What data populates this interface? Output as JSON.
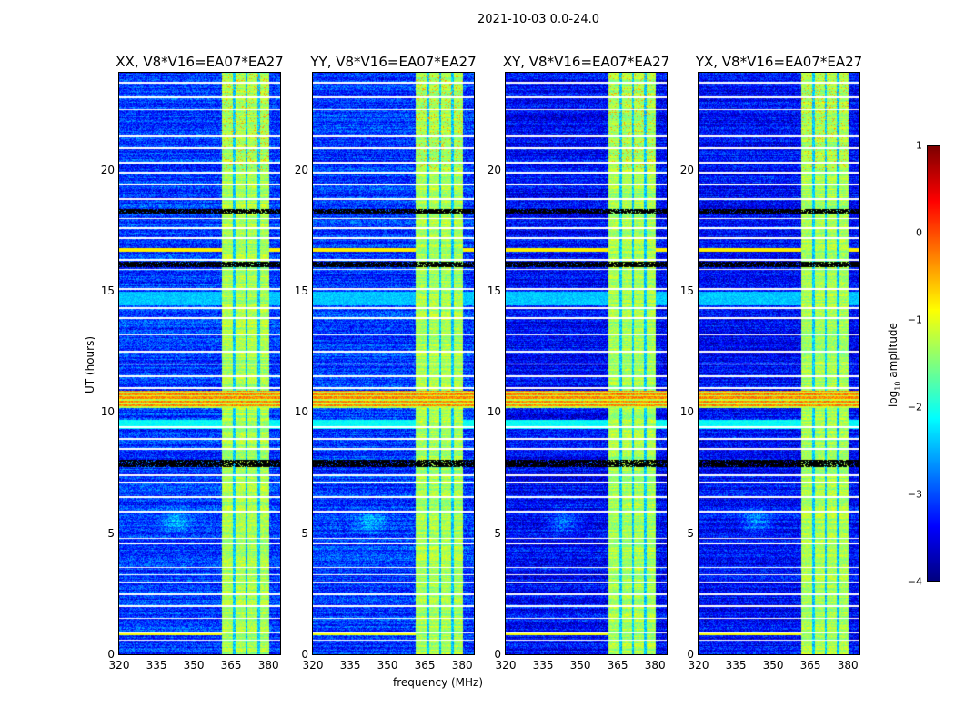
{
  "suptitle": "2021-10-03 0.0-24.0",
  "chart_data": {
    "type": "heatmap",
    "panels": [
      {
        "title": "XX, V8*V16=EA07*EA27"
      },
      {
        "title": "YY, V8*V16=EA07*EA27"
      },
      {
        "title": "XY, V8*V16=EA07*EA27"
      },
      {
        "title": "YX, V8*V16=EA07*EA27"
      }
    ],
    "xlabel": "frequency (MHz)",
    "ylabel": "UT (hours)",
    "xlim": [
      320,
      384.7
    ],
    "ylim": [
      0,
      24
    ],
    "xticks": [
      "320",
      "335",
      "350",
      "365",
      "380"
    ],
    "xtick_values": [
      320,
      335,
      350,
      365,
      380
    ],
    "yticks": [
      "0",
      "5",
      "10",
      "15",
      "20"
    ],
    "ytick_values": [
      0,
      5,
      10,
      15,
      20
    ],
    "colorbar": {
      "label": "log10 amplitude",
      "label_main": "log",
      "label_sub": "10",
      "label_rest": " amplitude",
      "ticks": [
        "1",
        "0",
        "−1",
        "−2",
        "−3",
        "−4"
      ],
      "tick_values": [
        1,
        0,
        -1,
        -2,
        -3,
        -4
      ],
      "vmin": -4,
      "vmax": 1,
      "colormap": "jet"
    },
    "features": {
      "background_level": -3.1,
      "bright_band_MHz": [
        361,
        380
      ],
      "bright_band_level": -1.3,
      "band_gaps_MHz": [
        366,
        371,
        376
      ],
      "rfi_band_hours": [
        10.2,
        10.9
      ],
      "rfi_level": -0.3,
      "flagged_hours": [
        0.6,
        0.9,
        1.5,
        2.0,
        2.5,
        3.0,
        3.3,
        3.6,
        4.6,
        4.8,
        5.9,
        6.5,
        7.1,
        7.4,
        8.5,
        8.9,
        9.4,
        11.0,
        11.5,
        12.0,
        12.5,
        13.2,
        13.9,
        14.3,
        15.1,
        15.9,
        16.3,
        17.2,
        17.6,
        18.0,
        18.8,
        19.4,
        19.9,
        20.3,
        20.9,
        21.4,
        22.5,
        23.0,
        23.6
      ],
      "dropout_hours": [
        [
          7.75,
          8.05
        ],
        [
          18.2,
          18.4
        ],
        [
          16.0,
          16.2
        ]
      ]
    }
  }
}
